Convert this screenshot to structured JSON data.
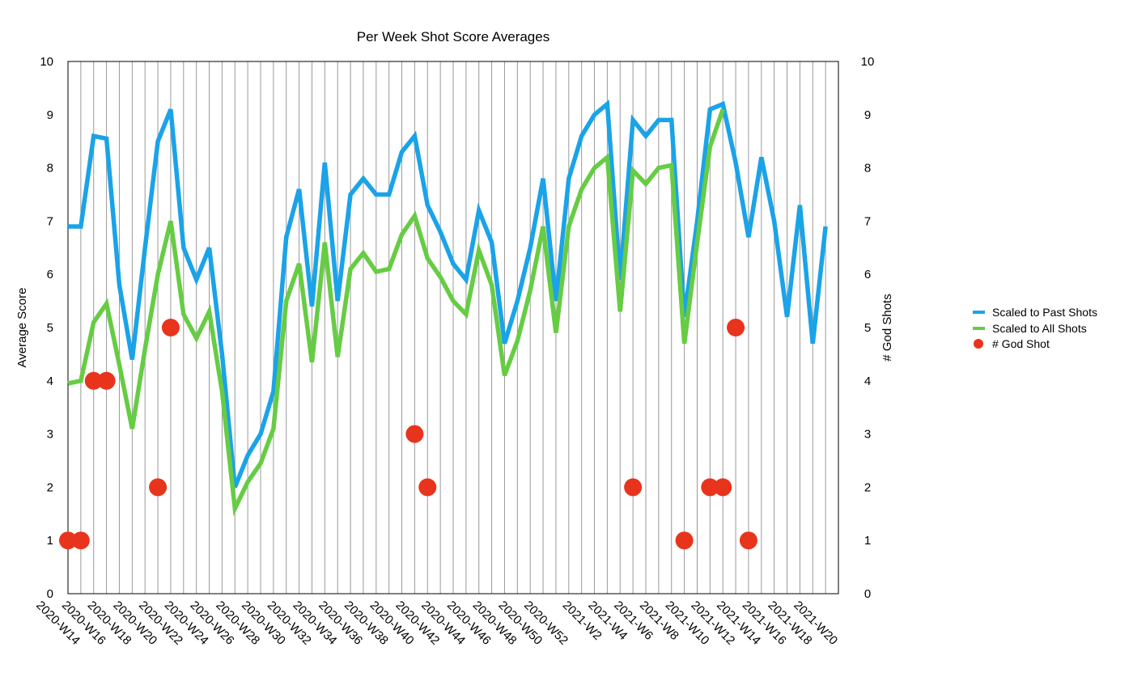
{
  "chart_data": {
    "type": "line",
    "title": "Per Week Shot Score Averages",
    "ylabel": "Average Score",
    "y2label": "# God Shots",
    "ylim": [
      0,
      10
    ],
    "y2lim": [
      0,
      10
    ],
    "yticks": [
      0,
      1,
      2,
      3,
      4,
      5,
      6,
      7,
      8,
      9,
      10
    ],
    "grid": true,
    "legend_position": "right",
    "x": [
      "2020-W14",
      "2020-W15",
      "2020-W16",
      "2020-W17",
      "2020-W18",
      "2020-W19",
      "2020-W20",
      "2020-W21",
      "2020-W22",
      "2020-W23",
      "2020-W24",
      "2020-W25",
      "2020-W26",
      "2020-W27",
      "2020-W28",
      "2020-W29",
      "2020-W30",
      "2020-W31",
      "2020-W32",
      "2020-W33",
      "2020-W34",
      "2020-W35",
      "2020-W36",
      "2020-W37",
      "2020-W38",
      "2020-W39",
      "2020-W40",
      "2020-W41",
      "2020-W42",
      "2020-W43",
      "2020-W44",
      "2020-W45",
      "2020-W46",
      "2020-W47",
      "2020-W48",
      "2020-W49",
      "2020-W50",
      "2020-W51",
      "2020-W52",
      "2020-W53",
      "2021-W1",
      "2021-W2",
      "2021-W3",
      "2021-W4",
      "2021-W5",
      "2021-W6",
      "2021-W7",
      "2021-W8",
      "2021-W9",
      "2021-W10",
      "2021-W11",
      "2021-W12",
      "2021-W13",
      "2021-W14",
      "2021-W15",
      "2021-W16",
      "2021-W17",
      "2021-W18",
      "2021-W19",
      "2021-W20",
      "2021-W21"
    ],
    "x_tick_labels": [
      "2020-W14",
      "2020-W16",
      "2020-W18",
      "2020-W20",
      "2020-W22",
      "2020-W24",
      "2020-W26",
      "2020-W28",
      "2020-W30",
      "2020-W32",
      "2020-W34",
      "2020-W36",
      "2020-W38",
      "2020-W40",
      "2020-W42",
      "2020-W44",
      "2020-W46",
      "2020-W48",
      "2020-W50",
      "2020-W52",
      "2021-W2",
      "2021-W4",
      "2021-W6",
      "2021-W8",
      "2021-W10",
      "2021-W12",
      "2021-W14",
      "2021-W16",
      "2021-W18",
      "2021-W20"
    ],
    "series": [
      {
        "name": "Scaled to Past Shots",
        "type": "line",
        "color": "#1aa3e8",
        "axis": "left",
        "values": [
          6.9,
          6.9,
          8.6,
          8.55,
          5.8,
          4.4,
          6.5,
          8.5,
          9.1,
          6.5,
          5.9,
          6.5,
          4.5,
          2.0,
          2.6,
          3.0,
          3.8,
          6.7,
          7.6,
          5.4,
          8.1,
          5.5,
          7.5,
          7.8,
          7.5,
          7.5,
          8.3,
          8.6,
          7.3,
          6.8,
          6.2,
          5.9,
          7.2,
          6.6,
          4.7,
          5.5,
          6.5,
          7.8,
          5.5,
          7.8,
          8.6,
          9.0,
          9.2,
          5.9,
          8.9,
          8.6,
          8.9,
          8.9,
          5.2,
          7.0,
          9.1,
          9.2,
          8.1,
          6.7,
          8.2,
          7.0,
          5.2,
          7.3,
          4.7,
          6.9,
          null
        ]
      },
      {
        "name": "Scaled to All Shots",
        "type": "line",
        "color": "#66cc44",
        "axis": "left",
        "values": [
          3.95,
          4.0,
          5.1,
          5.45,
          4.3,
          3.1,
          4.6,
          6.0,
          7.0,
          5.25,
          4.8,
          5.3,
          3.8,
          1.6,
          2.1,
          2.45,
          3.1,
          5.5,
          6.2,
          4.35,
          6.6,
          4.45,
          6.1,
          6.4,
          6.05,
          6.1,
          6.75,
          7.1,
          6.3,
          5.95,
          5.5,
          5.25,
          6.45,
          5.8,
          4.1,
          4.75,
          5.7,
          6.9,
          4.9,
          6.9,
          7.6,
          8.0,
          8.2,
          5.3,
          7.95,
          7.7,
          8.0,
          8.05,
          4.7,
          6.6,
          8.4,
          9.1,
          null,
          null,
          null,
          null,
          null,
          null,
          null,
          null,
          null
        ]
      },
      {
        "name": "# God Shot",
        "type": "scatter",
        "color": "#e8341c",
        "axis": "right",
        "points": [
          {
            "x": "2020-W14",
            "y": 1
          },
          {
            "x": "2020-W15",
            "y": 1
          },
          {
            "x": "2020-W16",
            "y": 4
          },
          {
            "x": "2020-W17",
            "y": 4
          },
          {
            "x": "2020-W21",
            "y": 2
          },
          {
            "x": "2020-W22",
            "y": 5
          },
          {
            "x": "2020-W41",
            "y": 3
          },
          {
            "x": "2020-W42",
            "y": 2
          },
          {
            "x": "2021-W5",
            "y": 2
          },
          {
            "x": "2021-W9",
            "y": 1
          },
          {
            "x": "2021-W11",
            "y": 2
          },
          {
            "x": "2021-W12",
            "y": 2
          },
          {
            "x": "2021-W13",
            "y": 5
          },
          {
            "x": "2021-W14",
            "y": 1
          }
        ]
      }
    ]
  }
}
